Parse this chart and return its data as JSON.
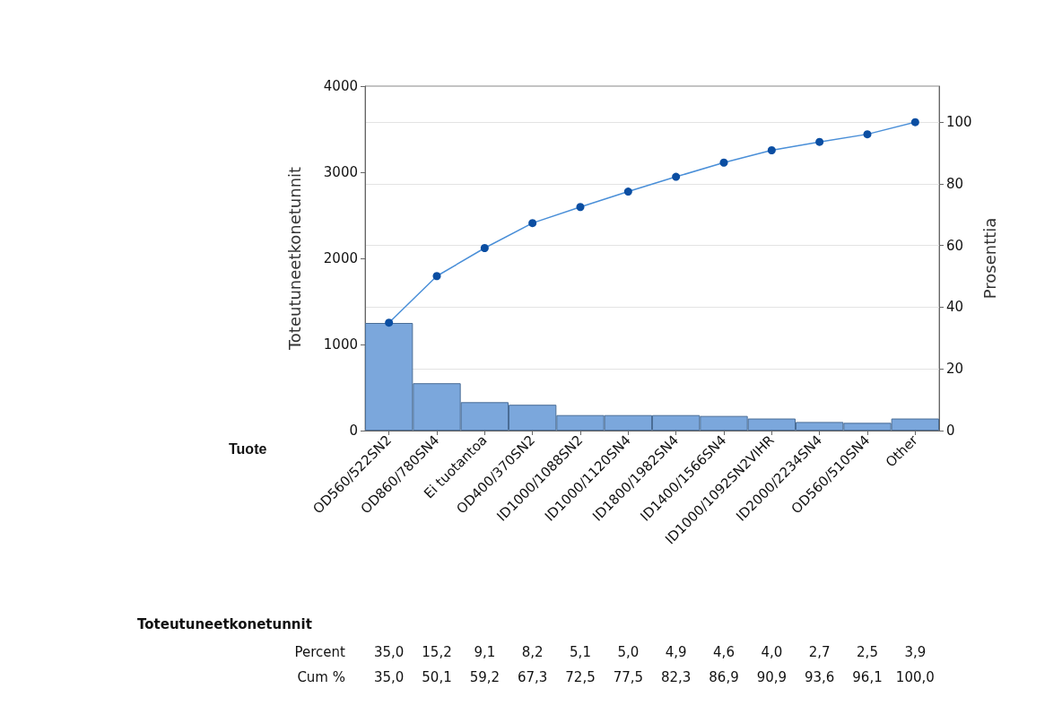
{
  "chart_data": {
    "type": "bar",
    "xlabel": "Tuote",
    "ylabel": "Toteutuneetkonetunnit",
    "y2label": "Prosenttia",
    "categories": [
      "OD560/522SN2",
      "OD860/780SN4",
      "Ei tuotantoa",
      "OD400/370SN2",
      "ID1000/1088SN2",
      "ID1000/1120SN4",
      "ID1800/1982SN4",
      "ID1400/1566SN4",
      "ID1000/1092SN2VIHR",
      "ID2000/2234SN4",
      "OD560/510SN4",
      "Other"
    ],
    "series": [
      {
        "color": "#7ba7dc",
        "values": [
          1250,
          550,
          330,
          300,
          180,
          180,
          180,
          170,
          140,
          100,
          90,
          140
        ]
      },
      {
        "type": "line",
        "axis": "y2",
        "color": "#0b4ea2",
        "values": [
          35.0,
          50.1,
          59.2,
          67.3,
          72.5,
          77.5,
          82.3,
          86.9,
          90.9,
          93.6,
          96.1,
          100.0
        ],
        "value_labels": [
          "35,0",
          "50,1",
          "59,2",
          "67,3",
          "72,5",
          "77,5",
          "82,3",
          "86,9",
          "90,9",
          "93,6",
          "96,1",
          "100,0"
        ]
      }
    ],
    "ylim": [
      0,
      4000
    ],
    "yticks": [
      0,
      1000,
      2000,
      3000,
      4000
    ],
    "y2lim": [
      0,
      111.7
    ],
    "y2ticks": [
      0,
      20,
      40,
      60,
      80,
      100
    ],
    "grid": "y2",
    "marker": "circle",
    "annotations": [
      "Toteutuneetkonetunnit",
      "Percent",
      "Cum %",
      "35,0",
      "15,2",
      "9,1",
      "8,2",
      "5,1",
      "5,0",
      "4,9",
      "4,6",
      "4,0",
      "2,7",
      "2,5",
      "3,9"
    ]
  }
}
